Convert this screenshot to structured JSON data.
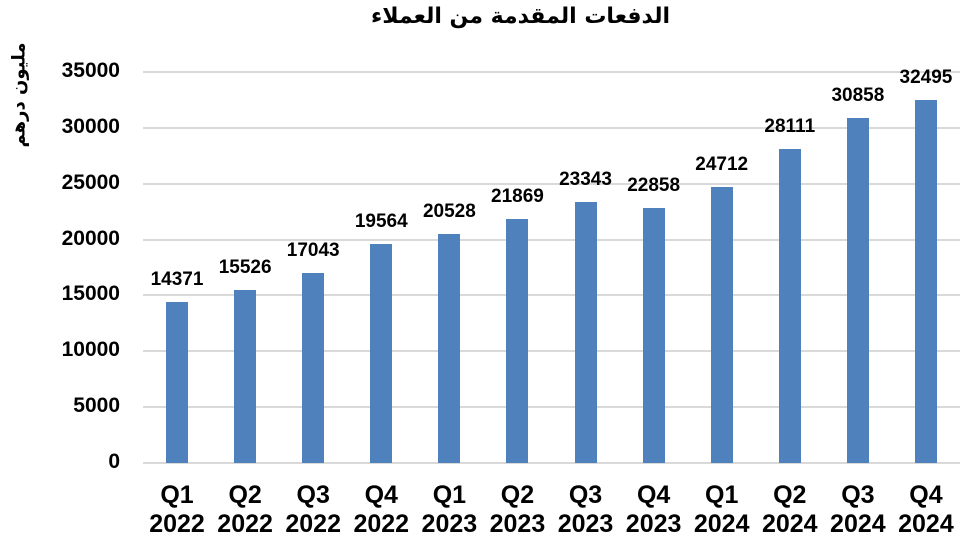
{
  "chart_data": {
    "type": "bar",
    "title": "الدفعات المقدمة من العملاء",
    "ylabel": "مليون درهم",
    "xlabel": "",
    "categories": [
      {
        "quarter": "Q1",
        "year": "2022"
      },
      {
        "quarter": "Q2",
        "year": "2022"
      },
      {
        "quarter": "Q3",
        "year": "2022"
      },
      {
        "quarter": "Q4",
        "year": "2022"
      },
      {
        "quarter": "Q1",
        "year": "2023"
      },
      {
        "quarter": "Q2",
        "year": "2023"
      },
      {
        "quarter": "Q3",
        "year": "2023"
      },
      {
        "quarter": "Q4",
        "year": "2023"
      },
      {
        "quarter": "Q1",
        "year": "2024"
      },
      {
        "quarter": "Q2",
        "year": "2024"
      },
      {
        "quarter": "Q3",
        "year": "2024"
      },
      {
        "quarter": "Q4",
        "year": "2024"
      }
    ],
    "values": [
      14371,
      15526,
      17043,
      19564,
      20528,
      21869,
      23343,
      22858,
      24712,
      28111,
      30858,
      32495
    ],
    "ylim": [
      0,
      35000
    ],
    "yticks": [
      0,
      5000,
      10000,
      15000,
      20000,
      25000,
      30000,
      35000
    ],
    "grid": true,
    "legend_position": "none",
    "data_labels": "outside-end",
    "colors": {
      "bar": "#4F81BD",
      "gridline": "#D9D9D9",
      "text": "#000000",
      "background": "#FFFFFF"
    }
  }
}
